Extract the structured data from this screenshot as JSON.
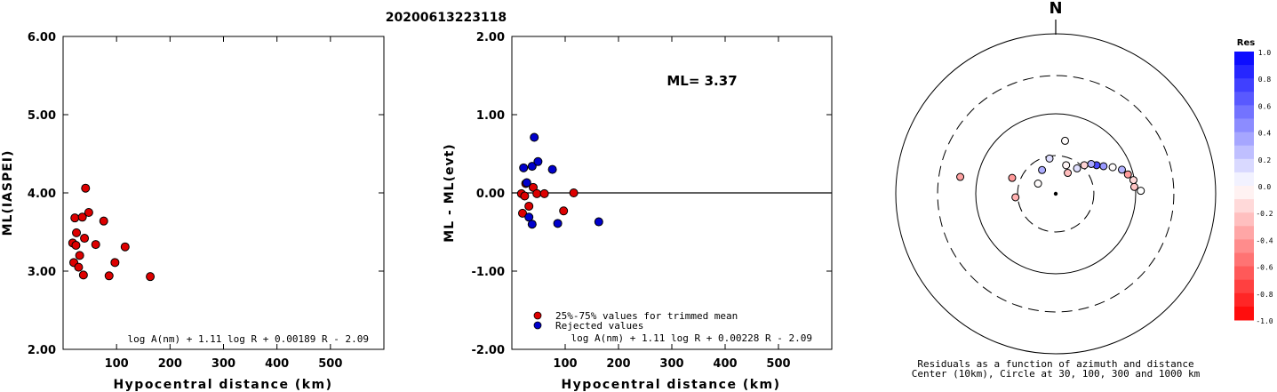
{
  "title": "20200613223118",
  "chart_data": [
    {
      "type": "scatter",
      "id": "ml-vs-distance",
      "xlabel": "Hypocentral distance (km)",
      "ylabel": "ML(IASPEI)",
      "xlim": [
        0,
        600
      ],
      "ylim": [
        2.0,
        6.0
      ],
      "xticks": [
        100,
        200,
        300,
        400,
        500
      ],
      "yticks": [
        2.0,
        3.0,
        4.0,
        5.0,
        6.0
      ],
      "ytick_labels": [
        "2.00",
        "3.00",
        "4.00",
        "5.00",
        "6.00"
      ],
      "formula": "log A(nm) + 1.11 log R + 0.00189 R - 2.09",
      "points": [
        {
          "x": 18,
          "y": 3.36
        },
        {
          "x": 20,
          "y": 3.11
        },
        {
          "x": 22,
          "y": 3.68
        },
        {
          "x": 24,
          "y": 3.33
        },
        {
          "x": 25,
          "y": 3.49
        },
        {
          "x": 29,
          "y": 3.05
        },
        {
          "x": 31,
          "y": 3.2
        },
        {
          "x": 36,
          "y": 3.69
        },
        {
          "x": 38,
          "y": 2.95
        },
        {
          "x": 40,
          "y": 3.42
        },
        {
          "x": 42,
          "y": 4.06
        },
        {
          "x": 48,
          "y": 3.75
        },
        {
          "x": 61,
          "y": 3.34
        },
        {
          "x": 76,
          "y": 3.64
        },
        {
          "x": 86,
          "y": 2.94
        },
        {
          "x": 97,
          "y": 3.11
        },
        {
          "x": 116,
          "y": 3.31
        },
        {
          "x": 163,
          "y": 2.93
        }
      ],
      "color": "#dd0000"
    },
    {
      "type": "scatter",
      "id": "residual-vs-distance",
      "xlabel": "Hypocentral distance (km)",
      "ylabel": "ML - ML(evt)",
      "xlim": [
        0,
        600
      ],
      "ylim": [
        -2.0,
        2.0
      ],
      "xticks": [
        100,
        200,
        300,
        400,
        500
      ],
      "yticks": [
        -2.0,
        -1.0,
        0.0,
        1.0,
        2.0
      ],
      "ytick_labels": [
        "-2.00",
        "-1.00",
        "0.00",
        "1.00",
        "2.00"
      ],
      "ml_label": "ML= 3.37",
      "legend": [
        {
          "label": "25%-75% values for trimmed mean",
          "color": "#dd0000"
        },
        {
          "label": "Rejected values",
          "color": "#0000cc"
        }
      ],
      "formula": "log A(nm) + 1.11 log R + 0.00228 R - 2.09",
      "series": [
        {
          "name": "25%-75% values for trimmed mean",
          "color": "#dd0000",
          "points": [
            {
              "x": 18,
              "y": -0.01
            },
            {
              "x": 20,
              "y": -0.26
            },
            {
              "x": 24,
              "y": -0.04
            },
            {
              "x": 26,
              "y": 0.12
            },
            {
              "x": 32,
              "y": -0.17
            },
            {
              "x": 40,
              "y": 0.07
            },
            {
              "x": 47,
              "y": -0.01
            },
            {
              "x": 61,
              "y": -0.01
            },
            {
              "x": 97,
              "y": -0.23
            },
            {
              "x": 116,
              "y": 0.0
            }
          ]
        },
        {
          "name": "Rejected values",
          "color": "#0000cc",
          "points": [
            {
              "x": 22,
              "y": 0.32
            },
            {
              "x": 28,
              "y": 0.13
            },
            {
              "x": 32,
              "y": -0.31
            },
            {
              "x": 38,
              "y": -0.4
            },
            {
              "x": 38,
              "y": 0.34
            },
            {
              "x": 42,
              "y": 0.71
            },
            {
              "x": 49,
              "y": 0.4
            },
            {
              "x": 76,
              "y": 0.3
            },
            {
              "x": 86,
              "y": -0.39
            },
            {
              "x": 163,
              "y": -0.37
            }
          ]
        }
      ]
    },
    {
      "type": "polar-scatter",
      "id": "residual-map",
      "north_label": "N",
      "caption_line1": "Residuals as a function of azimuth and distance",
      "caption_line2": "Center (10km), Circle at 30, 100, 300 and 1000 km",
      "rings_km": [
        30,
        100,
        300,
        1000
      ],
      "ring_styles": [
        "dashed",
        "solid",
        "dashed",
        "solid"
      ],
      "points": [
        {
          "azimuth_deg": 88,
          "distance_km": 116,
          "residual": 0.0
        },
        {
          "azimuth_deg": 85,
          "distance_km": 97,
          "residual": -0.23
        },
        {
          "azimuth_deg": 80,
          "distance_km": 97,
          "residual": -0.15
        },
        {
          "azimuth_deg": 75,
          "distance_km": 86,
          "residual": -0.39
        },
        {
          "azimuth_deg": 70,
          "distance_km": 76,
          "residual": 0.3
        },
        {
          "azimuth_deg": 65,
          "distance_km": 61,
          "residual": -0.01
        },
        {
          "azimuth_deg": 60,
          "distance_km": 49,
          "residual": 0.4
        },
        {
          "azimuth_deg": 55,
          "distance_km": 42,
          "residual": 0.71
        },
        {
          "azimuth_deg": 50,
          "distance_km": 38,
          "residual": 0.34
        },
        {
          "azimuth_deg": 45,
          "distance_km": 32,
          "residual": -0.17
        },
        {
          "azimuth_deg": 40,
          "distance_km": 26,
          "residual": 0.12
        },
        {
          "azimuth_deg": 30,
          "distance_km": 20,
          "residual": -0.26
        },
        {
          "azimuth_deg": 20,
          "distance_km": 24,
          "residual": -0.04
        },
        {
          "azimuth_deg": 10,
          "distance_km": 47,
          "residual": -0.01
        },
        {
          "azimuth_deg": 350,
          "distance_km": 28,
          "residual": 0.13
        },
        {
          "azimuth_deg": 330,
          "distance_km": 22,
          "residual": 0.32
        },
        {
          "azimuth_deg": 300,
          "distance_km": 18,
          "residual": -0.01
        },
        {
          "azimuth_deg": 290,
          "distance_km": 38,
          "residual": -0.4
        },
        {
          "azimuth_deg": 280,
          "distance_km": 163,
          "residual": -0.37
        },
        {
          "azimuth_deg": 265,
          "distance_km": 32,
          "residual": -0.31
        }
      ],
      "colorbar": {
        "title": "Res",
        "range": [
          -1.0,
          1.0
        ],
        "tick_labels": [
          "1.0",
          "0.8",
          "0.6",
          "0.4",
          "0.2",
          "0.0",
          "-0.2",
          "-0.4",
          "-0.6",
          "-0.8",
          "-1.0"
        ],
        "color_positive": "#0000ff",
        "color_negative": "#ff0000"
      }
    }
  ]
}
